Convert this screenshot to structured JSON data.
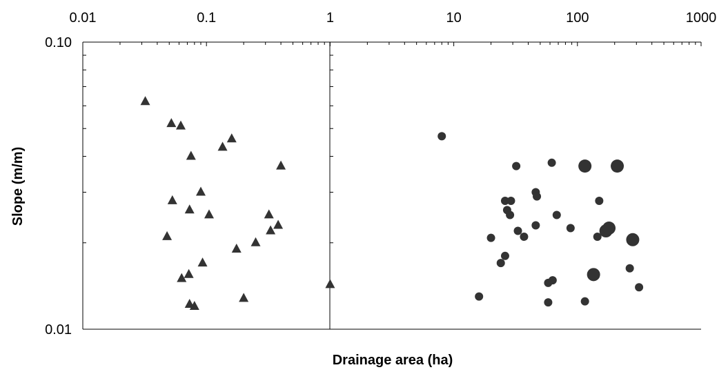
{
  "chart_data": {
    "type": "scatter",
    "xlabel": "Drainage area (ha)",
    "ylabel": "Slope (m/m)",
    "x_scale": "log",
    "y_scale": "log",
    "xlim": [
      0.01,
      1000
    ],
    "ylim": [
      0.01,
      0.1
    ],
    "x_tick_labels": [
      "0.01",
      "0.1",
      "1",
      "10",
      "100",
      "1000"
    ],
    "y_tick_labels": [
      "0.10",
      "0.01"
    ],
    "x_axis_position": "top",
    "grid": false,
    "legend": "none",
    "series": [
      {
        "marker": "triangle",
        "color": "#333333",
        "points": [
          {
            "x": 0.032,
            "y": 0.062
          },
          {
            "x": 0.052,
            "y": 0.052
          },
          {
            "x": 0.062,
            "y": 0.051
          },
          {
            "x": 0.075,
            "y": 0.04
          },
          {
            "x": 0.135,
            "y": 0.043
          },
          {
            "x": 0.16,
            "y": 0.046
          },
          {
            "x": 0.4,
            "y": 0.037
          },
          {
            "x": 0.09,
            "y": 0.03
          },
          {
            "x": 0.053,
            "y": 0.028
          },
          {
            "x": 0.073,
            "y": 0.026
          },
          {
            "x": 0.105,
            "y": 0.025
          },
          {
            "x": 0.32,
            "y": 0.025
          },
          {
            "x": 0.38,
            "y": 0.023
          },
          {
            "x": 0.33,
            "y": 0.022
          },
          {
            "x": 0.048,
            "y": 0.021
          },
          {
            "x": 0.25,
            "y": 0.02
          },
          {
            "x": 0.175,
            "y": 0.019
          },
          {
            "x": 0.093,
            "y": 0.017
          },
          {
            "x": 0.072,
            "y": 0.0155
          },
          {
            "x": 0.063,
            "y": 0.015
          },
          {
            "x": 0.2,
            "y": 0.0128
          },
          {
            "x": 0.073,
            "y": 0.0122
          },
          {
            "x": 0.08,
            "y": 0.012
          },
          {
            "x": 1.0,
            "y": 0.0143
          }
        ]
      },
      {
        "marker": "circle",
        "color": "#333333",
        "points": [
          {
            "x": 8,
            "y": 0.047,
            "size": 1
          },
          {
            "x": 32,
            "y": 0.037,
            "size": 1
          },
          {
            "x": 62,
            "y": 0.038,
            "size": 1
          },
          {
            "x": 115,
            "y": 0.037,
            "size": 2
          },
          {
            "x": 210,
            "y": 0.037,
            "size": 2
          },
          {
            "x": 46,
            "y": 0.03,
            "size": 1
          },
          {
            "x": 47,
            "y": 0.029,
            "size": 1
          },
          {
            "x": 26,
            "y": 0.028,
            "size": 1
          },
          {
            "x": 29,
            "y": 0.028,
            "size": 1
          },
          {
            "x": 27,
            "y": 0.026,
            "size": 1
          },
          {
            "x": 28.5,
            "y": 0.025,
            "size": 1
          },
          {
            "x": 150,
            "y": 0.028,
            "size": 1
          },
          {
            "x": 68,
            "y": 0.025,
            "size": 1
          },
          {
            "x": 46,
            "y": 0.023,
            "size": 1
          },
          {
            "x": 33,
            "y": 0.022,
            "size": 1
          },
          {
            "x": 37,
            "y": 0.021,
            "size": 1
          },
          {
            "x": 88,
            "y": 0.0225,
            "size": 1
          },
          {
            "x": 170,
            "y": 0.022,
            "size": 2
          },
          {
            "x": 180,
            "y": 0.0225,
            "size": 2
          },
          {
            "x": 145,
            "y": 0.021,
            "size": 1
          },
          {
            "x": 280,
            "y": 0.0205,
            "size": 2
          },
          {
            "x": 20,
            "y": 0.0208,
            "size": 1
          },
          {
            "x": 26,
            "y": 0.018,
            "size": 1
          },
          {
            "x": 24,
            "y": 0.017,
            "size": 1
          },
          {
            "x": 265,
            "y": 0.0163,
            "size": 1
          },
          {
            "x": 135,
            "y": 0.0155,
            "size": 2
          },
          {
            "x": 63,
            "y": 0.0148,
            "size": 1
          },
          {
            "x": 58,
            "y": 0.0145,
            "size": 1
          },
          {
            "x": 315,
            "y": 0.014,
            "size": 1
          },
          {
            "x": 16,
            "y": 0.013,
            "size": 1
          },
          {
            "x": 58,
            "y": 0.0124,
            "size": 1
          },
          {
            "x": 115,
            "y": 0.0125,
            "size": 1
          }
        ]
      }
    ]
  }
}
